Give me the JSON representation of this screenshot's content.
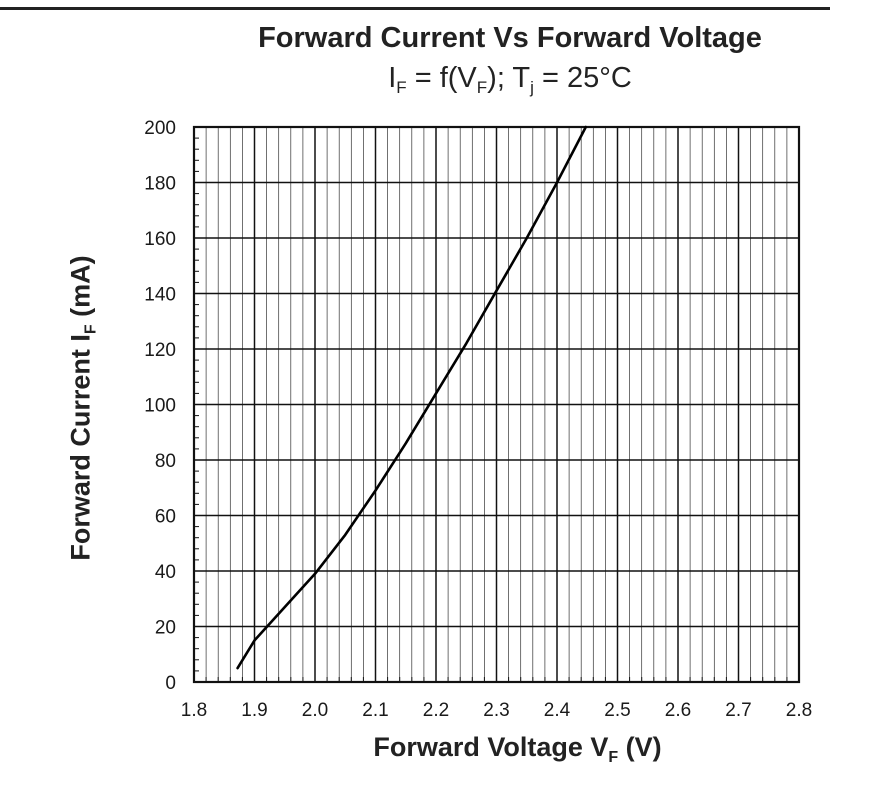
{
  "chart_data": {
    "type": "line",
    "title": "Forward Current Vs Forward Voltage",
    "subtitle": {
      "parts": [
        "I",
        "F",
        " = f(V",
        "F",
        "); T",
        "j",
        " = 25°C"
      ]
    },
    "xlabel": {
      "main": "Forward Voltage V",
      "sub": "F",
      "unit": " (V)"
    },
    "ylabel": {
      "main": "Forward Current I",
      "sub": "F",
      "unit": " (mA)"
    },
    "xlim": [
      1.8,
      2.8
    ],
    "ylim": [
      0,
      200
    ],
    "x_ticks": [
      "1.8",
      "1.9",
      "2.0",
      "2.1",
      "2.2",
      "2.3",
      "2.4",
      "2.5",
      "2.6",
      "2.7",
      "2.8"
    ],
    "y_ticks": [
      "0",
      "20",
      "40",
      "60",
      "80",
      "100",
      "120",
      "140",
      "160",
      "180",
      "200"
    ],
    "grid": true,
    "series": [
      {
        "color": "#000000",
        "x": [
          1.872,
          1.9,
          1.95,
          2.0,
          2.05,
          2.1,
          2.15,
          2.2,
          2.25,
          2.3,
          2.35,
          2.4,
          2.45
        ],
        "y": [
          5,
          15,
          27,
          39,
          53,
          69,
          86,
          104,
          122,
          141,
          160,
          180,
          201
        ]
      }
    ]
  }
}
